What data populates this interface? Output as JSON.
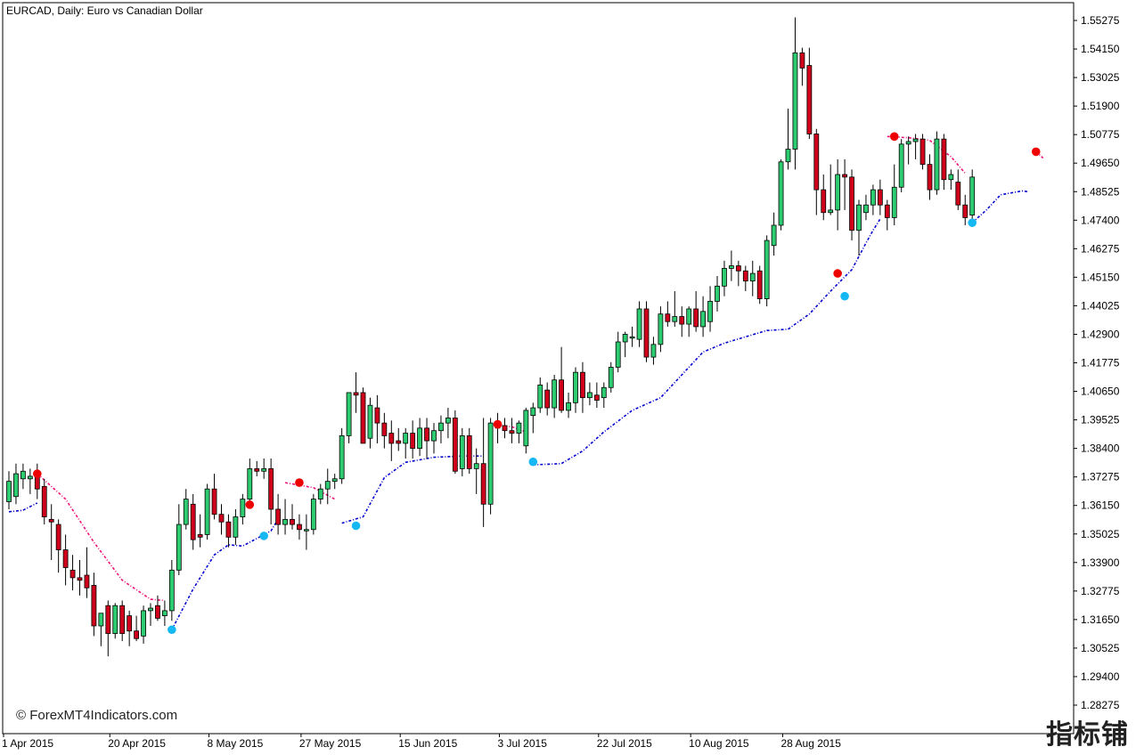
{
  "window": {
    "title": "EURCAD, Daily:  Euro vs Canadian Dollar",
    "watermark": "© ForexMT4Indicators.com",
    "corner_mark": "指标铺"
  },
  "colors": {
    "bull_candle": "#2ecc71",
    "bear_candle": "#d0001c",
    "candle_outline": "#000000",
    "trail_up": "#0000cc",
    "trail_down": "#ee1177",
    "dot_up": "#16b8f3",
    "dot_down": "#ee0000",
    "grid_frame": "#000000",
    "background": "#ffffff"
  },
  "chart_data": {
    "type": "candlestick",
    "symbol": "EURCAD",
    "timeframe": "Daily",
    "title": "EURCAD, Daily:  Euro vs Canadian Dollar",
    "y_ticks": [
      "1.55275",
      "1.54150",
      "1.53025",
      "1.51900",
      "1.50775",
      "1.49650",
      "1.48525",
      "1.47400",
      "1.46275",
      "1.45150",
      "1.44025",
      "1.42900",
      "1.41775",
      "1.40650",
      "1.39525",
      "1.38400",
      "1.37275",
      "1.36150",
      "1.35025",
      "1.33900",
      "1.32775",
      "1.31650",
      "1.30525",
      "1.29400",
      "1.28275"
    ],
    "ylim": [
      1.2765,
      1.5545
    ],
    "x_labels": [
      {
        "label": "1 Apr 2015",
        "index": 0
      },
      {
        "label": "20 Apr 2015",
        "index": 15
      },
      {
        "label": "8 May 2015",
        "index": 29
      },
      {
        "label": "27 May 2015",
        "index": 42
      },
      {
        "label": "15 Jun 2015",
        "index": 56
      },
      {
        "label": "3 Jul 2015",
        "index": 70
      },
      {
        "label": "22 Jul 2015",
        "index": 84
      },
      {
        "label": "10 Aug 2015",
        "index": 97
      },
      {
        "label": "28 Aug 2015",
        "index": 110
      }
    ],
    "ohlc": [
      [
        1.363,
        1.375,
        1.36,
        1.371
      ],
      [
        1.365,
        1.378,
        1.362,
        1.374
      ],
      [
        1.372,
        1.378,
        1.368,
        1.375
      ],
      [
        1.372,
        1.376,
        1.366,
        1.373
      ],
      [
        1.373,
        1.378,
        1.364,
        1.368
      ],
      [
        1.369,
        1.372,
        1.354,
        1.357
      ],
      [
        1.356,
        1.362,
        1.34,
        1.355
      ],
      [
        1.354,
        1.356,
        1.335,
        1.344
      ],
      [
        1.344,
        1.35,
        1.33,
        1.337
      ],
      [
        1.336,
        1.342,
        1.328,
        1.333
      ],
      [
        1.333,
        1.34,
        1.326,
        1.332
      ],
      [
        1.334,
        1.345,
        1.325,
        1.329
      ],
      [
        1.33,
        1.335,
        1.31,
        1.314
      ],
      [
        1.314,
        1.319,
        1.306,
        1.319
      ],
      [
        1.322,
        1.324,
        1.302,
        1.311
      ],
      [
        1.311,
        1.323,
        1.309,
        1.322
      ],
      [
        1.322,
        1.324,
        1.308,
        1.311
      ],
      [
        1.318,
        1.32,
        1.306,
        1.312
      ],
      [
        1.312,
        1.318,
        1.308,
        1.309
      ],
      [
        1.31,
        1.322,
        1.307,
        1.32
      ],
      [
        1.32,
        1.323,
        1.314,
        1.321
      ],
      [
        1.322,
        1.326,
        1.316,
        1.317
      ],
      [
        1.318,
        1.324,
        1.314,
        1.32
      ],
      [
        1.32,
        1.34,
        1.316,
        1.336
      ],
      [
        1.336,
        1.362,
        1.334,
        1.354
      ],
      [
        1.354,
        1.368,
        1.352,
        1.364
      ],
      [
        1.362,
        1.366,
        1.344,
        1.348
      ],
      [
        1.35,
        1.358,
        1.345,
        1.349
      ],
      [
        1.35,
        1.37,
        1.348,
        1.368
      ],
      [
        1.368,
        1.374,
        1.356,
        1.358
      ],
      [
        1.358,
        1.362,
        1.35,
        1.355
      ],
      [
        1.355,
        1.358,
        1.345,
        1.349
      ],
      [
        1.349,
        1.36,
        1.346,
        1.357
      ],
      [
        1.357,
        1.366,
        1.354,
        1.364
      ],
      [
        1.364,
        1.38,
        1.362,
        1.376
      ],
      [
        1.376,
        1.379,
        1.373,
        1.375
      ],
      [
        1.375,
        1.38,
        1.372,
        1.376
      ],
      [
        1.376,
        1.38,
        1.354,
        1.36
      ],
      [
        1.36,
        1.366,
        1.35,
        1.354
      ],
      [
        1.354,
        1.364,
        1.35,
        1.356
      ],
      [
        1.356,
        1.362,
        1.352,
        1.354
      ],
      [
        1.354,
        1.358,
        1.348,
        1.352
      ],
      [
        1.352,
        1.358,
        1.344,
        1.352
      ],
      [
        1.352,
        1.366,
        1.35,
        1.364
      ],
      [
        1.364,
        1.37,
        1.362,
        1.368
      ],
      [
        1.368,
        1.376,
        1.362,
        1.371
      ],
      [
        1.371,
        1.374,
        1.368,
        1.372
      ],
      [
        1.372,
        1.392,
        1.37,
        1.389
      ],
      [
        1.389,
        1.406,
        1.386,
        1.406
      ],
      [
        1.406,
        1.414,
        1.398,
        1.405
      ],
      [
        1.406,
        1.408,
        1.386,
        1.386
      ],
      [
        1.388,
        1.404,
        1.384,
        1.401
      ],
      [
        1.4,
        1.405,
        1.386,
        1.394
      ],
      [
        1.394,
        1.398,
        1.384,
        1.389
      ],
      [
        1.39,
        1.395,
        1.379,
        1.386
      ],
      [
        1.387,
        1.392,
        1.383,
        1.386
      ],
      [
        1.386,
        1.392,
        1.38,
        1.39
      ],
      [
        1.39,
        1.395,
        1.38,
        1.384
      ],
      [
        1.384,
        1.396,
        1.381,
        1.392
      ],
      [
        1.392,
        1.396,
        1.38,
        1.387
      ],
      [
        1.387,
        1.394,
        1.382,
        1.391
      ],
      [
        1.391,
        1.397,
        1.386,
        1.394
      ],
      [
        1.394,
        1.4,
        1.388,
        1.396
      ],
      [
        1.396,
        1.399,
        1.374,
        1.375
      ],
      [
        1.376,
        1.392,
        1.373,
        1.389
      ],
      [
        1.389,
        1.392,
        1.374,
        1.376
      ],
      [
        1.376,
        1.384,
        1.366,
        1.378
      ],
      [
        1.378,
        1.396,
        1.353,
        1.362
      ],
      [
        1.362,
        1.396,
        1.358,
        1.394
      ],
      [
        1.392,
        1.398,
        1.386,
        1.393
      ],
      [
        1.393,
        1.396,
        1.388,
        1.391
      ],
      [
        1.391,
        1.396,
        1.386,
        1.39
      ],
      [
        1.39,
        1.395,
        1.386,
        1.394
      ],
      [
        1.385,
        1.4,
        1.382,
        1.399
      ],
      [
        1.397,
        1.402,
        1.39,
        1.4
      ],
      [
        1.4,
        1.412,
        1.398,
        1.409
      ],
      [
        1.407,
        1.41,
        1.397,
        1.4
      ],
      [
        1.4,
        1.413,
        1.396,
        1.411
      ],
      [
        1.411,
        1.424,
        1.398,
        1.399
      ],
      [
        1.399,
        1.406,
        1.396,
        1.402
      ],
      [
        1.402,
        1.416,
        1.398,
        1.414
      ],
      [
        1.414,
        1.418,
        1.398,
        1.404
      ],
      [
        1.404,
        1.41,
        1.401,
        1.406
      ],
      [
        1.405,
        1.41,
        1.4,
        1.403
      ],
      [
        1.404,
        1.41,
        1.4,
        1.408
      ],
      [
        1.408,
        1.418,
        1.406,
        1.416
      ],
      [
        1.416,
        1.43,
        1.414,
        1.426
      ],
      [
        1.426,
        1.43,
        1.42,
        1.429
      ],
      [
        1.428,
        1.432,
        1.424,
        1.428
      ],
      [
        1.427,
        1.442,
        1.424,
        1.439
      ],
      [
        1.439,
        1.442,
        1.418,
        1.42
      ],
      [
        1.42,
        1.428,
        1.417,
        1.425
      ],
      [
        1.425,
        1.44,
        1.422,
        1.437
      ],
      [
        1.437,
        1.442,
        1.432,
        1.434
      ],
      [
        1.434,
        1.446,
        1.432,
        1.436
      ],
      [
        1.436,
        1.44,
        1.428,
        1.433
      ],
      [
        1.433,
        1.44,
        1.428,
        1.439
      ],
      [
        1.439,
        1.446,
        1.43,
        1.432
      ],
      [
        1.432,
        1.444,
        1.428,
        1.438
      ],
      [
        1.434,
        1.448,
        1.43,
        1.442
      ],
      [
        1.442,
        1.452,
        1.438,
        1.448
      ],
      [
        1.448,
        1.458,
        1.444,
        1.455
      ],
      [
        1.455,
        1.462,
        1.45,
        1.456
      ],
      [
        1.456,
        1.458,
        1.448,
        1.454
      ],
      [
        1.454,
        1.456,
        1.446,
        1.45
      ],
      [
        1.45,
        1.458,
        1.444,
        1.453
      ],
      [
        1.454,
        1.456,
        1.441,
        1.443
      ],
      [
        1.443,
        1.468,
        1.44,
        1.466
      ],
      [
        1.464,
        1.477,
        1.46,
        1.472
      ],
      [
        1.472,
        1.498,
        1.47,
        1.497
      ],
      [
        1.497,
        1.518,
        1.494,
        1.502
      ],
      [
        1.502,
        1.554,
        1.494,
        1.54
      ],
      [
        1.54,
        1.542,
        1.527,
        1.534
      ],
      [
        1.535,
        1.542,
        1.506,
        1.508
      ],
      [
        1.508,
        1.51,
        1.476,
        1.486
      ],
      [
        1.486,
        1.492,
        1.474,
        1.477
      ],
      [
        1.477,
        1.496,
        1.476,
        1.478
      ],
      [
        1.478,
        1.498,
        1.47,
        1.492
      ],
      [
        1.492,
        1.498,
        1.478,
        1.491
      ],
      [
        1.491,
        1.494,
        1.466,
        1.47
      ],
      [
        1.47,
        1.482,
        1.46,
        1.48
      ],
      [
        1.477,
        1.484,
        1.474,
        1.48
      ],
      [
        1.48,
        1.488,
        1.476,
        1.486
      ],
      [
        1.486,
        1.49,
        1.476,
        1.48
      ],
      [
        1.48,
        1.482,
        1.47,
        1.475
      ],
      [
        1.475,
        1.496,
        1.472,
        1.487
      ],
      [
        1.487,
        1.506,
        1.485,
        1.504
      ],
      [
        1.504,
        1.507,
        1.496,
        1.505
      ],
      [
        1.505,
        1.508,
        1.498,
        1.506
      ],
      [
        1.506,
        1.508,
        1.494,
        1.496
      ],
      [
        1.496,
        1.5,
        1.482,
        1.486
      ],
      [
        1.486,
        1.509,
        1.484,
        1.506
      ],
      [
        1.506,
        1.508,
        1.486,
        1.49
      ],
      [
        1.49,
        1.494,
        1.486,
        1.492
      ],
      [
        1.489,
        1.494,
        1.478,
        1.48
      ],
      [
        1.48,
        1.484,
        1.472,
        1.475
      ],
      [
        1.476,
        1.494,
        1.474,
        1.491
      ]
    ],
    "trail_segments": [
      {
        "trend": "up",
        "points": [
          [
            0,
            1.359
          ],
          [
            2,
            1.3596
          ],
          [
            4,
            1.3625
          ]
        ]
      },
      {
        "trend": "down",
        "points": [
          [
            4,
            1.374
          ],
          [
            8,
            1.364
          ],
          [
            12,
            1.347
          ],
          [
            16,
            1.332
          ],
          [
            20,
            1.3245
          ],
          [
            22,
            1.324
          ]
        ]
      },
      {
        "trend": "up",
        "points": [
          [
            23,
            1.3125
          ],
          [
            26,
            1.3285
          ],
          [
            29,
            1.342
          ],
          [
            31,
            1.346
          ],
          [
            33,
            1.3455
          ],
          [
            37,
            1.3515
          ],
          [
            38,
            1.356
          ]
        ]
      },
      {
        "trend": "down",
        "points": [
          [
            39,
            1.3705
          ],
          [
            43,
            1.3685
          ],
          [
            46,
            1.364
          ]
        ]
      },
      {
        "trend": "up",
        "points": [
          [
            47,
            1.3545
          ],
          [
            50,
            1.357
          ],
          [
            53,
            1.3725
          ],
          [
            56,
            1.3785
          ],
          [
            60,
            1.3805
          ],
          [
            64,
            1.381
          ],
          [
            67,
            1.381
          ]
        ]
      },
      {
        "trend": "down",
        "points": [
          [
            68,
            1.3935
          ],
          [
            71,
            1.3925
          ],
          [
            73,
            1.3905
          ]
        ]
      },
      {
        "trend": "up",
        "points": [
          [
            74,
            1.3775
          ],
          [
            78,
            1.378
          ],
          [
            81,
            1.383
          ],
          [
            84,
            1.3905
          ],
          [
            88,
            1.399
          ],
          [
            92,
            1.404
          ],
          [
            95,
            1.413
          ],
          [
            98,
            1.422
          ],
          [
            101,
            1.4255
          ],
          [
            104,
            1.428
          ],
          [
            107,
            1.4305
          ],
          [
            110,
            1.431
          ],
          [
            113,
            1.437
          ],
          [
            116,
            1.446
          ],
          [
            119,
            1.4545
          ],
          [
            121,
            1.465
          ],
          [
            122,
            1.47
          ],
          [
            123,
            1.4745
          ]
        ]
      },
      {
        "trend": "down",
        "points": [
          [
            124,
            1.507
          ],
          [
            127,
            1.5065
          ],
          [
            130,
            1.5055
          ],
          [
            133,
            1.499
          ],
          [
            135,
            1.4925
          ]
        ]
      },
      {
        "trend": "up",
        "points": [
          [
            136,
            1.473
          ],
          [
            138,
            1.478
          ],
          [
            140,
            1.484
          ],
          [
            143,
            1.4855
          ],
          [
            144,
            1.4852
          ]
        ]
      },
      {
        "trend": "down",
        "points": [
          [
            145,
            1.501
          ],
          [
            146,
            1.4985
          ]
        ]
      }
    ],
    "signal_dots": [
      {
        "index": 4,
        "price": 1.374,
        "trend": "down"
      },
      {
        "index": 23,
        "price": 1.3125,
        "trend": "up"
      },
      {
        "index": 34,
        "price": 1.3618,
        "trend": "down"
      },
      {
        "index": 36,
        "price": 1.3495,
        "trend": "up"
      },
      {
        "index": 41,
        "price": 1.3705,
        "trend": "down"
      },
      {
        "index": 49,
        "price": 1.3535,
        "trend": "up"
      },
      {
        "index": 69,
        "price": 1.3935,
        "trend": "down"
      },
      {
        "index": 74,
        "price": 1.3787,
        "trend": "up"
      },
      {
        "index": 117,
        "price": 1.453,
        "trend": "down"
      },
      {
        "index": 118,
        "price": 1.444,
        "trend": "up"
      },
      {
        "index": 125,
        "price": 1.507,
        "trend": "down"
      },
      {
        "index": 136,
        "price": 1.473,
        "trend": "up"
      },
      {
        "index": 145,
        "price": 1.501,
        "trend": "down"
      }
    ]
  }
}
